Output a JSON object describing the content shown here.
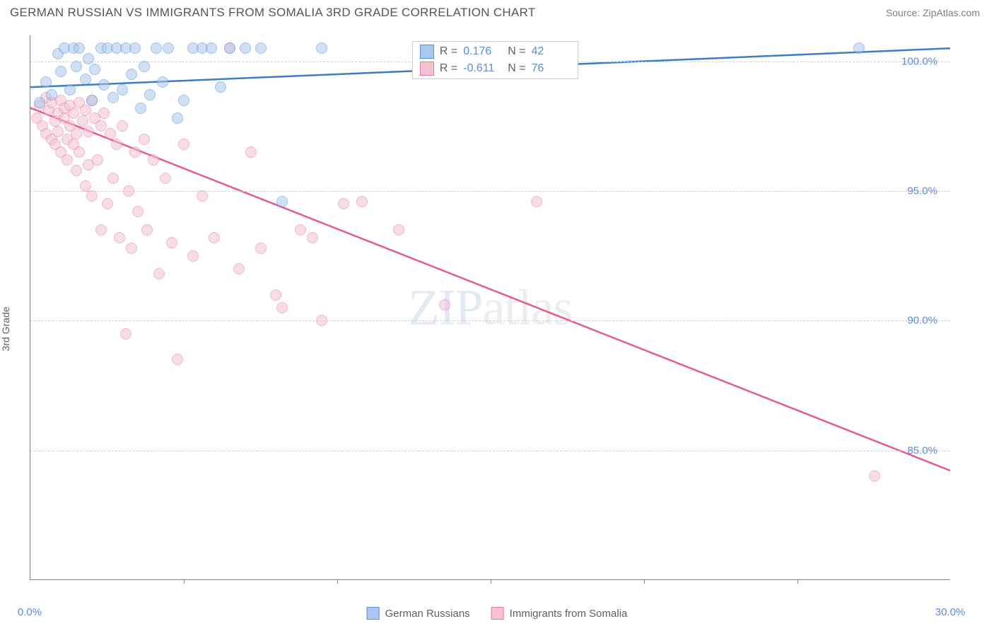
{
  "title": "GERMAN RUSSIAN VS IMMIGRANTS FROM SOMALIA 3RD GRADE CORRELATION CHART",
  "source": "Source: ZipAtlas.com",
  "watermark_a": "ZIP",
  "watermark_b": "atlas",
  "y_axis_label": "3rd Grade",
  "chart": {
    "type": "scatter",
    "xlim": [
      0,
      30
    ],
    "ylim": [
      80,
      101
    ],
    "x_ticks": [
      0,
      30
    ],
    "x_tick_labels": [
      "0.0%",
      "30.0%"
    ],
    "x_minor_ticks": [
      5,
      10,
      15,
      20,
      25
    ],
    "y_ticks": [
      85,
      90,
      95,
      100
    ],
    "y_tick_labels": [
      "85.0%",
      "90.0%",
      "95.0%",
      "100.0%"
    ],
    "background_color": "#ffffff",
    "grid_color": "#d0d0d0",
    "series": [
      {
        "name": "German Russians",
        "class": "blue",
        "marker_color": "#a8c8ed",
        "border_color": "#5b8dd6",
        "line_color": "#3d7cc9",
        "R_label": "R =",
        "R": "0.176",
        "N_label": "N =",
        "N": "42",
        "trend": {
          "x1": 0,
          "y1": 99.0,
          "x2": 30,
          "y2": 100.5
        },
        "points": [
          [
            0.3,
            98.4
          ],
          [
            0.5,
            99.2
          ],
          [
            0.7,
            98.7
          ],
          [
            0.9,
            100.3
          ],
          [
            1.0,
            99.6
          ],
          [
            1.1,
            100.5
          ],
          [
            1.3,
            98.9
          ],
          [
            1.4,
            100.5
          ],
          [
            1.5,
            99.8
          ],
          [
            1.6,
            100.5
          ],
          [
            1.8,
            99.3
          ],
          [
            1.9,
            100.1
          ],
          [
            2.0,
            98.5
          ],
          [
            2.1,
            99.7
          ],
          [
            2.3,
            100.5
          ],
          [
            2.4,
            99.1
          ],
          [
            2.5,
            100.5
          ],
          [
            2.7,
            98.6
          ],
          [
            2.8,
            100.5
          ],
          [
            3.0,
            98.9
          ],
          [
            3.1,
            100.5
          ],
          [
            3.3,
            99.5
          ],
          [
            3.4,
            100.5
          ],
          [
            3.6,
            98.2
          ],
          [
            3.7,
            99.8
          ],
          [
            3.9,
            98.7
          ],
          [
            4.1,
            100.5
          ],
          [
            4.3,
            99.2
          ],
          [
            4.5,
            100.5
          ],
          [
            4.8,
            97.8
          ],
          [
            5.0,
            98.5
          ],
          [
            5.3,
            100.5
          ],
          [
            5.6,
            100.5
          ],
          [
            5.9,
            100.5
          ],
          [
            6.2,
            99.0
          ],
          [
            6.5,
            100.5
          ],
          [
            7.0,
            100.5
          ],
          [
            7.5,
            100.5
          ],
          [
            8.2,
            94.6
          ],
          [
            9.5,
            100.5
          ],
          [
            15.5,
            100.5
          ],
          [
            27.0,
            100.5
          ]
        ]
      },
      {
        "name": "Immigrants from Somalia",
        "class": "pink",
        "marker_color": "#f5c2d1",
        "border_color": "#e87ba3",
        "line_color": "#e85a8f",
        "R_label": "R =",
        "R": "-0.611",
        "N_label": "N =",
        "N": "76",
        "trend": {
          "x1": 0,
          "y1": 98.2,
          "x2": 30,
          "y2": 84.2
        },
        "points": [
          [
            0.2,
            97.8
          ],
          [
            0.3,
            98.3
          ],
          [
            0.4,
            97.5
          ],
          [
            0.5,
            98.6
          ],
          [
            0.5,
            97.2
          ],
          [
            0.6,
            98.1
          ],
          [
            0.7,
            97.0
          ],
          [
            0.7,
            98.4
          ],
          [
            0.8,
            97.7
          ],
          [
            0.8,
            96.8
          ],
          [
            0.9,
            98.0
          ],
          [
            0.9,
            97.3
          ],
          [
            1.0,
            98.5
          ],
          [
            1.0,
            96.5
          ],
          [
            1.1,
            97.8
          ],
          [
            1.1,
            98.2
          ],
          [
            1.2,
            97.0
          ],
          [
            1.2,
            96.2
          ],
          [
            1.3,
            98.3
          ],
          [
            1.3,
            97.5
          ],
          [
            1.4,
            96.8
          ],
          [
            1.4,
            98.0
          ],
          [
            1.5,
            97.2
          ],
          [
            1.5,
            95.8
          ],
          [
            1.6,
            98.4
          ],
          [
            1.6,
            96.5
          ],
          [
            1.7,
            97.7
          ],
          [
            1.8,
            98.1
          ],
          [
            1.8,
            95.2
          ],
          [
            1.9,
            97.3
          ],
          [
            1.9,
            96.0
          ],
          [
            2.0,
            98.5
          ],
          [
            2.0,
            94.8
          ],
          [
            2.1,
            97.8
          ],
          [
            2.2,
            96.2
          ],
          [
            2.3,
            97.5
          ],
          [
            2.3,
            93.5
          ],
          [
            2.4,
            98.0
          ],
          [
            2.5,
            94.5
          ],
          [
            2.6,
            97.2
          ],
          [
            2.7,
            95.5
          ],
          [
            2.8,
            96.8
          ],
          [
            2.9,
            93.2
          ],
          [
            3.0,
            97.5
          ],
          [
            3.1,
            89.5
          ],
          [
            3.2,
            95.0
          ],
          [
            3.3,
            92.8
          ],
          [
            3.4,
            96.5
          ],
          [
            3.5,
            94.2
          ],
          [
            3.7,
            97.0
          ],
          [
            3.8,
            93.5
          ],
          [
            4.0,
            96.2
          ],
          [
            4.2,
            91.8
          ],
          [
            4.4,
            95.5
          ],
          [
            4.6,
            93.0
          ],
          [
            4.8,
            88.5
          ],
          [
            5.0,
            96.8
          ],
          [
            5.3,
            92.5
          ],
          [
            5.6,
            94.8
          ],
          [
            6.0,
            93.2
          ],
          [
            6.5,
            100.5
          ],
          [
            6.8,
            92.0
          ],
          [
            7.2,
            96.5
          ],
          [
            7.5,
            92.8
          ],
          [
            8.0,
            91.0
          ],
          [
            8.2,
            90.5
          ],
          [
            8.8,
            93.5
          ],
          [
            9.2,
            93.2
          ],
          [
            9.5,
            90.0
          ],
          [
            10.2,
            94.5
          ],
          [
            10.8,
            94.6
          ],
          [
            12.0,
            93.5
          ],
          [
            13.5,
            90.6
          ],
          [
            16.5,
            94.6
          ],
          [
            17.5,
            100.5
          ],
          [
            27.5,
            84.0
          ]
        ]
      }
    ],
    "stats_box": {
      "left_pct": 41.5,
      "top_pct": 1
    }
  },
  "legend": {
    "items": [
      {
        "label": "German Russians",
        "class": "blue"
      },
      {
        "label": "Immigrants from Somalia",
        "class": "pink"
      }
    ]
  }
}
